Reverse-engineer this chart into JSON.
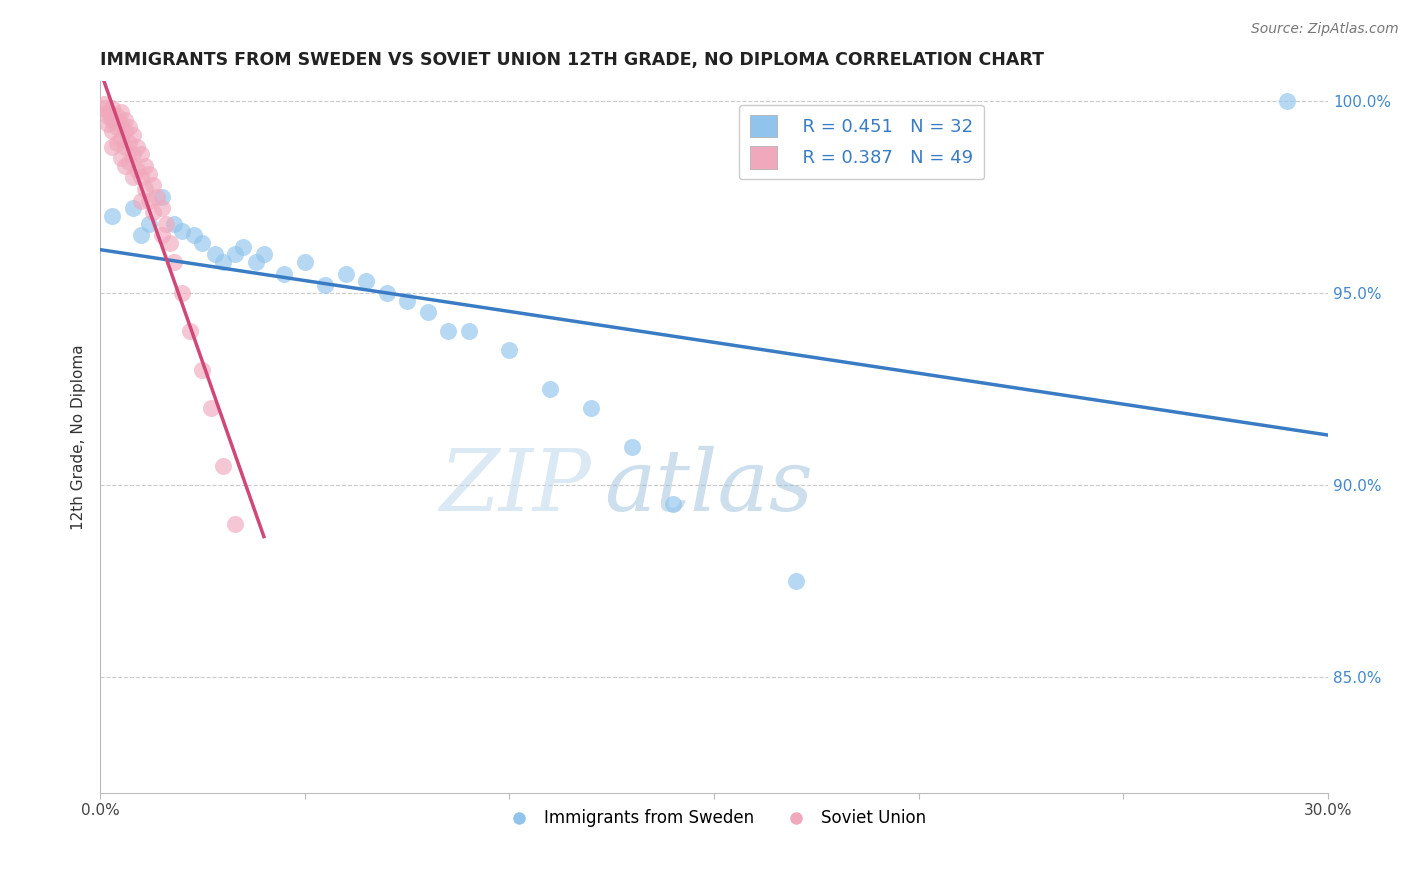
{
  "title": "IMMIGRANTS FROM SWEDEN VS SOVIET UNION 12TH GRADE, NO DIPLOMA CORRELATION CHART",
  "source": "Source: ZipAtlas.com",
  "ylabel": "12th Grade, No Diploma",
  "xlim": [
    0.0,
    0.3
  ],
  "ylim": [
    0.82,
    1.005
  ],
  "xtick_positions": [
    0.0,
    0.05,
    0.1,
    0.15,
    0.2,
    0.25,
    0.3
  ],
  "xtick_labels": [
    "0.0%",
    "",
    "",
    "",
    "",
    "",
    "30.0%"
  ],
  "ytick_positions": [
    0.85,
    0.9,
    0.95,
    1.0
  ],
  "ytick_labels": [
    "85.0%",
    "90.0%",
    "95.0%",
    "100.0%"
  ],
  "legend_r_sweden": "R = 0.451",
  "legend_n_sweden": "N = 32",
  "legend_r_soviet": "R = 0.387",
  "legend_n_soviet": "N = 49",
  "sweden_color": "#90c4ec",
  "soviet_color": "#f0a8bc",
  "sweden_line_color": "#3a7cc4",
  "soviet_line_color": "#d04878",
  "background_color": "#ffffff",
  "grid_color": "#cccccc",
  "sweden_points_x": [
    0.003,
    0.008,
    0.01,
    0.012,
    0.015,
    0.018,
    0.02,
    0.023,
    0.025,
    0.028,
    0.03,
    0.033,
    0.035,
    0.038,
    0.04,
    0.045,
    0.05,
    0.055,
    0.06,
    0.065,
    0.07,
    0.075,
    0.08,
    0.085,
    0.09,
    0.1,
    0.11,
    0.12,
    0.13,
    0.14,
    0.17,
    0.29
  ],
  "sweden_points_y": [
    0.97,
    0.972,
    0.965,
    0.968,
    0.975,
    0.968,
    0.966,
    0.965,
    0.963,
    0.96,
    0.958,
    0.96,
    0.962,
    0.958,
    0.96,
    0.955,
    0.958,
    0.952,
    0.955,
    0.953,
    0.95,
    0.948,
    0.945,
    0.94,
    0.94,
    0.935,
    0.925,
    0.92,
    0.91,
    0.895,
    0.875,
    1.0
  ],
  "soviet_points_x": [
    0.001,
    0.001,
    0.002,
    0.002,
    0.002,
    0.003,
    0.003,
    0.003,
    0.003,
    0.004,
    0.004,
    0.004,
    0.005,
    0.005,
    0.005,
    0.005,
    0.006,
    0.006,
    0.006,
    0.006,
    0.007,
    0.007,
    0.007,
    0.008,
    0.008,
    0.008,
    0.009,
    0.009,
    0.01,
    0.01,
    0.01,
    0.011,
    0.011,
    0.012,
    0.012,
    0.013,
    0.013,
    0.014,
    0.015,
    0.015,
    0.016,
    0.017,
    0.018,
    0.02,
    0.022,
    0.025,
    0.027,
    0.03,
    0.033
  ],
  "soviet_points_y": [
    0.999,
    0.998,
    0.997,
    0.996,
    0.994,
    0.998,
    0.995,
    0.992,
    0.988,
    0.996,
    0.993,
    0.989,
    0.997,
    0.994,
    0.99,
    0.985,
    0.995,
    0.992,
    0.988,
    0.983,
    0.993,
    0.989,
    0.984,
    0.991,
    0.986,
    0.98,
    0.988,
    0.982,
    0.986,
    0.98,
    0.974,
    0.983,
    0.977,
    0.981,
    0.974,
    0.978,
    0.971,
    0.975,
    0.972,
    0.965,
    0.968,
    0.963,
    0.958,
    0.95,
    0.94,
    0.93,
    0.92,
    0.905,
    0.89
  ],
  "watermark_zip": "ZIP",
  "watermark_atlas": "atlas",
  "bottom_legend_sweden": "Immigrants from Sweden",
  "bottom_legend_soviet": "Soviet Union"
}
